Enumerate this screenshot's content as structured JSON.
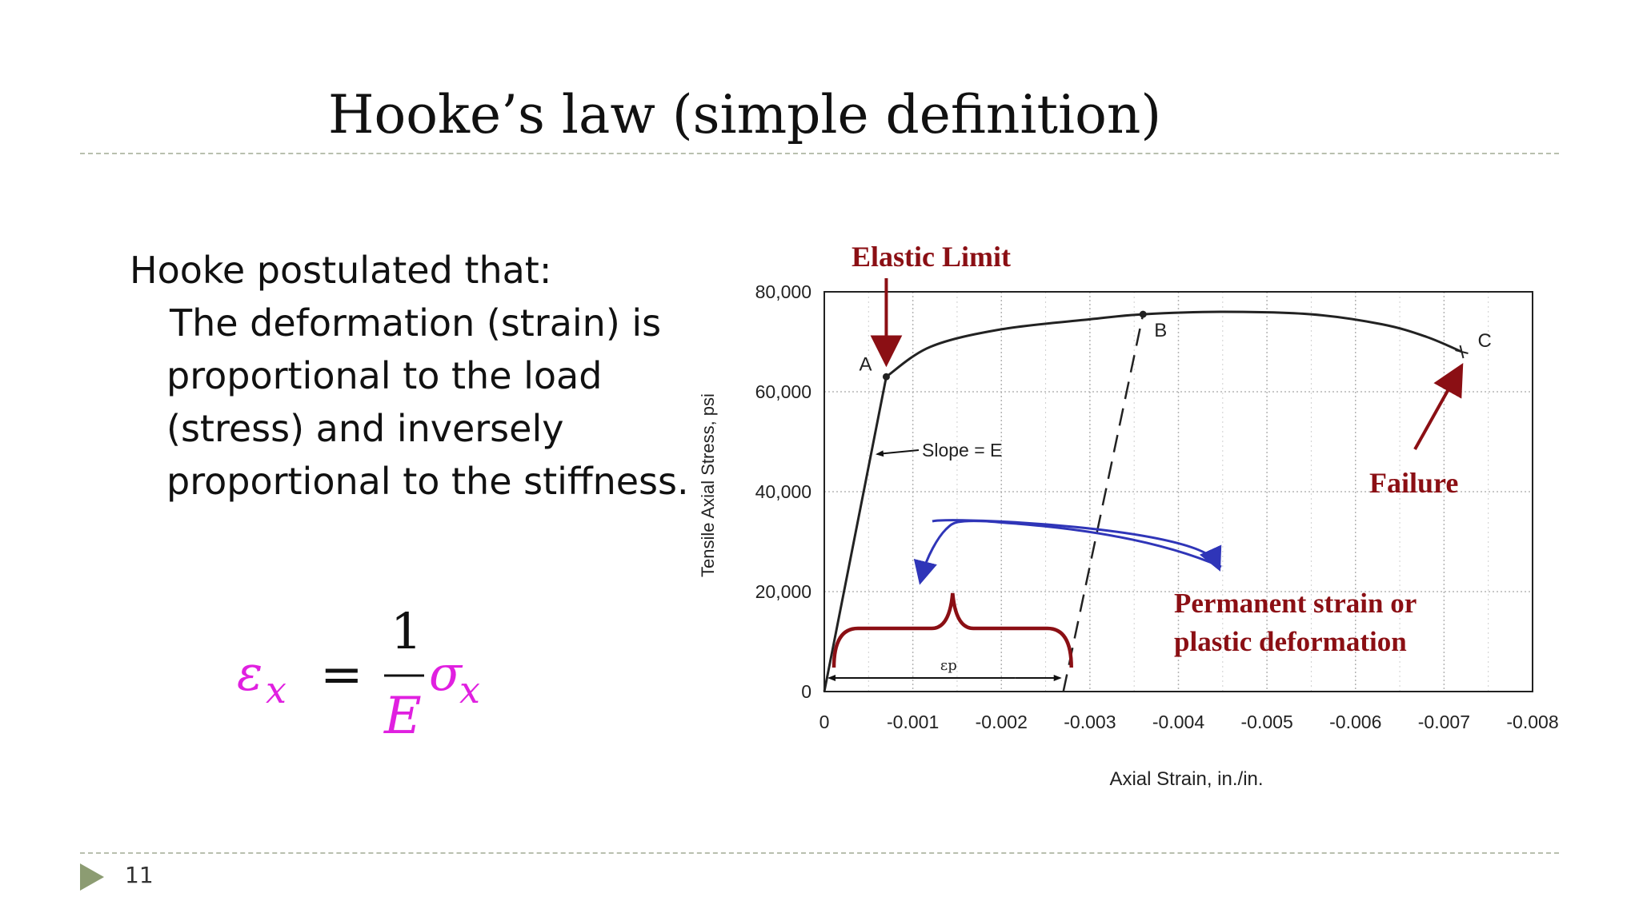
{
  "slide": {
    "title": "Hooke’s law (simple definition)",
    "page_number": "11",
    "intro": "Hooke postulated that:",
    "statement_lines": [
      "The deformation (strain) is",
      "proportional to the load",
      "(stress) and inversely",
      "proportional to the stiffness."
    ],
    "formula": {
      "lhs_symbol": "ε",
      "lhs_sub": "x",
      "equals": "=",
      "numerator": "1",
      "denominator": "E",
      "rhs_symbol": "σ",
      "rhs_sub": "x",
      "color_strain": "#e020e0",
      "color_sigma": "#e020e0"
    }
  },
  "chart_data": {
    "type": "line",
    "xlabel": "Axial Strain, in./in.",
    "ylabel": "Tensile Axial Stress, psi",
    "xlim": [
      0,
      -0.008
    ],
    "ylim": [
      0,
      80000
    ],
    "x_ticks": [
      "0",
      "-0.001",
      "-0.002",
      "-0.003",
      "-0.004",
      "-0.005",
      "-0.006",
      "-0.007",
      "-0.008"
    ],
    "x_tick_values": [
      0,
      -0.001,
      -0.002,
      -0.003,
      -0.004,
      -0.005,
      -0.006,
      -0.007,
      -0.008
    ],
    "y_ticks": [
      "0",
      "20,000",
      "40,000",
      "60,000",
      "80,000"
    ],
    "y_tick_values": [
      0,
      20000,
      40000,
      60000,
      80000
    ],
    "grid": true,
    "series": [
      {
        "values": [
          [
            0,
            0
          ],
          [
            -0.0007,
            63000
          ],
          [
            -0.0012,
            69000
          ],
          [
            -0.002,
            72500
          ],
          [
            -0.003,
            74500
          ],
          [
            -0.0036,
            75500
          ],
          [
            -0.0045,
            76000
          ],
          [
            -0.0055,
            75500
          ],
          [
            -0.0063,
            73500
          ],
          [
            -0.0068,
            71000
          ],
          [
            -0.0072,
            68000
          ]
        ]
      },
      {
        "style": "dashed",
        "values": [
          [
            -0.0027,
            0
          ],
          [
            -0.0036,
            75500
          ]
        ]
      }
    ],
    "points": [
      {
        "label": "A",
        "x": -0.0007,
        "y": 63000
      },
      {
        "label": "B",
        "x": -0.0036,
        "y": 75500
      },
      {
        "label": "C",
        "x": -0.0072,
        "y": 68000
      }
    ],
    "annotations": {
      "slope_label": "Slope = E",
      "strain_marker": "εp",
      "elastic_limit": "Elastic Limit",
      "failure": "Failure",
      "permanent_line1": "Permanent strain or",
      "permanent_line2": "plastic deformation"
    },
    "colors": {
      "annotation": "#8b0f14",
      "curved_arrow": "#2f35b8",
      "curve": "#222222",
      "grid": "#b5b5b5"
    }
  }
}
